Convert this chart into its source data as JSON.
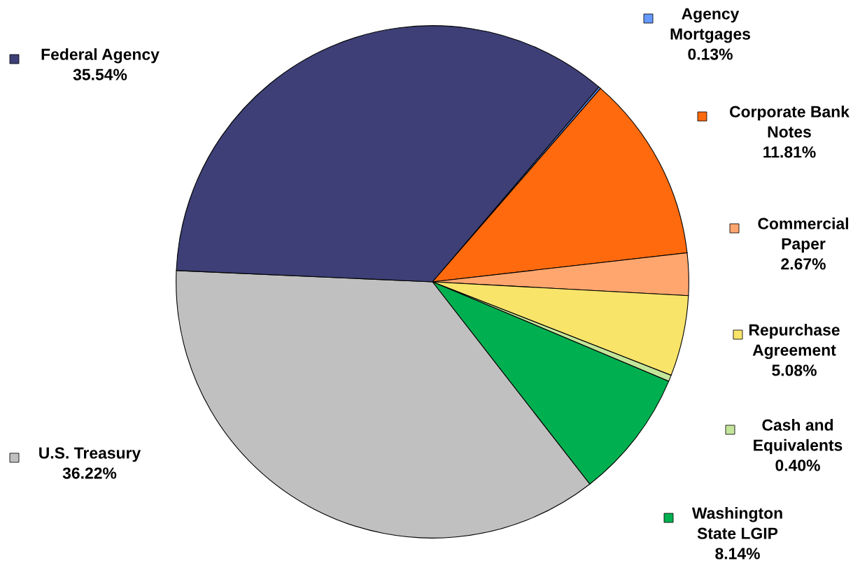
{
  "chart_data": {
    "type": "pie",
    "categories": [
      "Agency\nMortgages",
      "Corporate Bank\nNotes",
      "Commercial\nPaper",
      "Repurchase\nAgreement",
      "Cash and\nEquivalents",
      "Washington\nState LGIP",
      "U.S. Treasury",
      "Federal Agency"
    ],
    "values": [
      0.13,
      11.81,
      2.67,
      5.08,
      0.4,
      8.14,
      36.22,
      35.54
    ],
    "value_labels": [
      "0.13%",
      "11.81%",
      "2.67%",
      "5.08%",
      "0.40%",
      "8.14%",
      "36.22%",
      "35.54%"
    ],
    "colors": [
      "#6699ff",
      "#ff6a0e",
      "#ffa66e",
      "#f9e46a",
      "#c3e59a",
      "#00b050",
      "#c0c0c0",
      "#3d3f76"
    ],
    "legend": "right"
  }
}
